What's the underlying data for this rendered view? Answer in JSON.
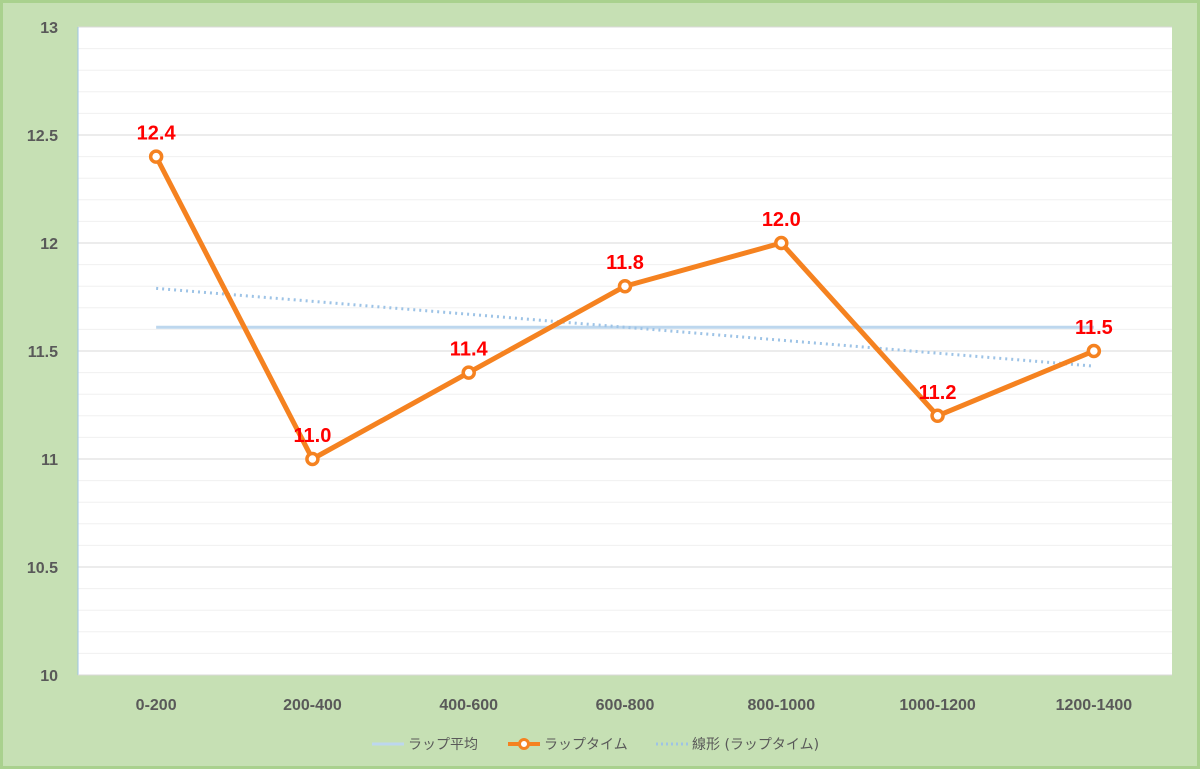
{
  "chart_data": {
    "type": "line",
    "categories": [
      "0-200",
      "200-400",
      "400-600",
      "600-800",
      "800-1000",
      "1000-1200",
      "1200-1400"
    ],
    "series": [
      {
        "name": "ラップタイム",
        "values": [
          12.4,
          11.0,
          11.4,
          11.8,
          12.0,
          11.2,
          11.5
        ],
        "color": "#f58220",
        "data_labels": [
          "12.4",
          "11.0",
          "11.4",
          "11.8",
          "12.0",
          "11.2",
          "11.5"
        ]
      },
      {
        "name": "ラップ平均",
        "values": [
          11.61,
          11.61,
          11.61,
          11.61,
          11.61,
          11.61,
          11.61
        ],
        "color": "#bdd7ee"
      },
      {
        "name": "線形 (ラップタイム)",
        "values": [
          11.79,
          11.73,
          11.67,
          11.61,
          11.55,
          11.49,
          11.43
        ],
        "color": "#9dc3e6"
      }
    ],
    "ylim": [
      10,
      13
    ],
    "yticks": [
      "10",
      "10.5",
      "11",
      "11.5",
      "12",
      "12.5",
      "13"
    ],
    "grid": true,
    "legend_position": "bottom",
    "legend": [
      "ラップ平均",
      "ラップタイム",
      "線形 (ラップタイム)"
    ]
  },
  "colors": {
    "background": "#c6e0b4",
    "plot_area": "#ffffff",
    "gridline": "#d9d9d9",
    "tick_text": "#595959",
    "data_label": "#ff0000"
  }
}
